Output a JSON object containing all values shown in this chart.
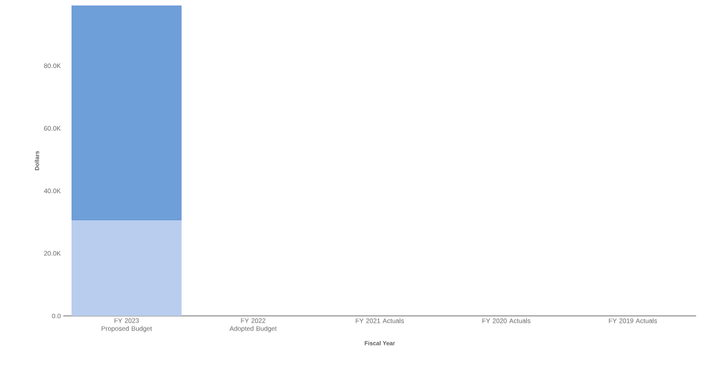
{
  "chart_data": {
    "type": "bar",
    "stacked": true,
    "xlabel": "Fiscal Year",
    "ylabel": "Dollars",
    "categories": [
      "FY 2023\nProposed Budget",
      "FY 2022\nAdopted Budget",
      "FY 2021 Actuals",
      "FY 2020 Actuals",
      "FY 2019 Actuals"
    ],
    "series": [
      {
        "color": "#b9cdee",
        "values": [
          30500,
          null,
          null,
          null,
          null
        ]
      },
      {
        "color": "#6f9fd8",
        "values": [
          68800,
          null,
          null,
          null,
          null
        ]
      }
    ],
    "ylim": [
      0,
      99300
    ],
    "yticks": [
      {
        "value": 0,
        "label": "0.0"
      },
      {
        "value": 20000,
        "label": "20.0K"
      },
      {
        "value": 40000,
        "label": "40.0K"
      },
      {
        "value": 60000,
        "label": "60.0K"
      },
      {
        "value": 80000,
        "label": "80.0K"
      }
    ],
    "grid": false
  }
}
